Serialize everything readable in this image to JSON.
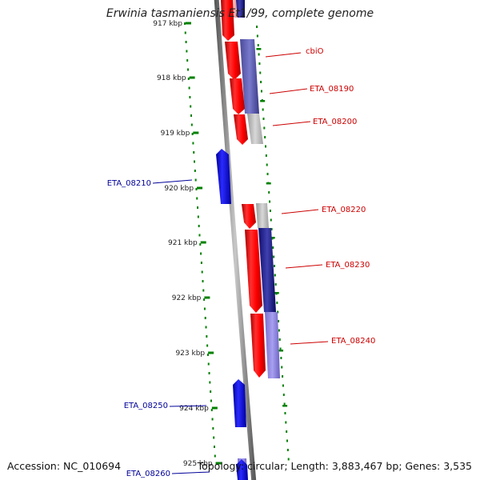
{
  "title": "Erwinia tasmaniensis Et1/99, complete genome",
  "footer": {
    "accession_label": "Accession:",
    "accession": "NC_010694",
    "topology_label": "Topology:",
    "topology": "circular",
    "length_label": "Length:",
    "length": "3,883,467 bp",
    "genes_label": "Genes:",
    "genes": "3,535"
  },
  "colors": {
    "forward_gene": "#ff0000",
    "reverse_gene": "#0000ff",
    "gc_skew_ticks": "#008000",
    "backbone": "#888888",
    "forward_label": "#cc0000",
    "reverse_label": "#000099"
  },
  "scale_ticks": [
    {
      "label": "917 kbp"
    },
    {
      "label": "918 kbp"
    },
    {
      "label": "919 kbp"
    },
    {
      "label": "920 kbp"
    },
    {
      "label": "921 kbp"
    },
    {
      "label": "922 kbp"
    },
    {
      "label": "923 kbp"
    },
    {
      "label": "924 kbp"
    },
    {
      "label": "925 kbp"
    }
  ],
  "forward_gene_labels": [
    "cbiO",
    "ETA_08190",
    "ETA_08200",
    "ETA_08220",
    "ETA_08230",
    "ETA_08240"
  ],
  "reverse_gene_labels": [
    "ETA_08210",
    "ETA_08250",
    "ETA_08260"
  ]
}
